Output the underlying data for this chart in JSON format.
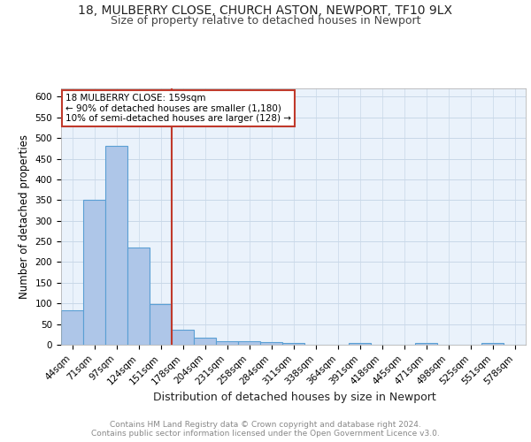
{
  "title1": "18, MULBERRY CLOSE, CHURCH ASTON, NEWPORT, TF10 9LX",
  "title2": "Size of property relative to detached houses in Newport",
  "xlabel": "Distribution of detached houses by size in Newport",
  "ylabel": "Number of detached properties",
  "categories": [
    "44sqm",
    "71sqm",
    "97sqm",
    "124sqm",
    "151sqm",
    "178sqm",
    "204sqm",
    "231sqm",
    "258sqm",
    "284sqm",
    "311sqm",
    "338sqm",
    "364sqm",
    "391sqm",
    "418sqm",
    "445sqm",
    "471sqm",
    "498sqm",
    "525sqm",
    "551sqm",
    "578sqm"
  ],
  "values": [
    83,
    350,
    480,
    235,
    98,
    37,
    18,
    8,
    8,
    7,
    5,
    0,
    0,
    5,
    0,
    0,
    5,
    0,
    0,
    5,
    0
  ],
  "bar_color": "#aec6e8",
  "bar_edgecolor": "#5a9fd4",
  "bar_linewidth": 0.8,
  "vline_color": "#c0392b",
  "ylim": [
    0,
    620
  ],
  "yticks": [
    0,
    50,
    100,
    150,
    200,
    250,
    300,
    350,
    400,
    450,
    500,
    550,
    600
  ],
  "annotation_text": "18 MULBERRY CLOSE: 159sqm\n← 90% of detached houses are smaller (1,180)\n10% of semi-detached houses are larger (128) →",
  "annotation_box_color": "#ffffff",
  "annotation_box_edgecolor": "#c0392b",
  "grid_color": "#c8d8e8",
  "background_color": "#eaf2fb",
  "footer_text": "Contains HM Land Registry data © Crown copyright and database right 2024.\nContains public sector information licensed under the Open Government Licence v3.0.",
  "title_fontsize": 10,
  "subtitle_fontsize": 9,
  "ylabel_fontsize": 8.5,
  "xlabel_fontsize": 9,
  "tick_fontsize": 7.5,
  "footer_fontsize": 6.5
}
